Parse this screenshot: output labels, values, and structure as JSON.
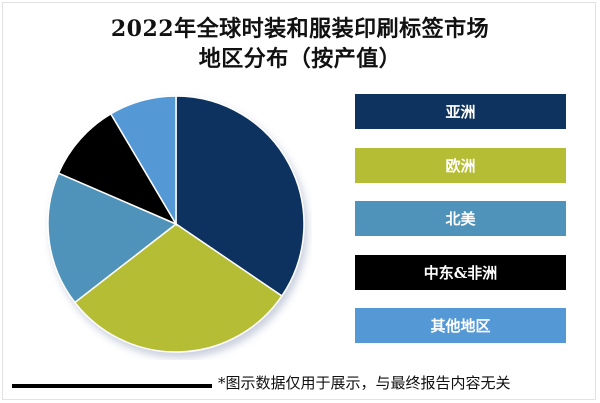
{
  "title": {
    "line1": "2022年全球时装和服装印刷标签市场",
    "line2": "地区分布（按产值）"
  },
  "footnote": "*图示数据仅用于展示，与最终报告内容无关",
  "chart_data": {
    "type": "pie",
    "title": "2022年全球时装和服装印刷标签市场地区分布（按产值）",
    "categories": [
      "亚洲",
      "欧洲",
      "北美",
      "中东&非洲",
      "其他地区"
    ],
    "values": [
      34.5,
      30.0,
      17.0,
      10.0,
      8.5
    ],
    "unit": "%",
    "start_angle_deg": 0,
    "direction": "clockwise",
    "colors": [
      "#0e335e",
      "#b5bd35",
      "#4f93bb",
      "#000000",
      "#5598d6"
    ],
    "legend_position": "right",
    "data_labels": false
  },
  "legend": {
    "items": [
      {
        "label": "亚洲",
        "color": "#0e335e"
      },
      {
        "label": "欧洲",
        "color": "#b5bd35"
      },
      {
        "label": "北美",
        "color": "#4f93bb"
      },
      {
        "label": "中东&非洲",
        "color": "#000000"
      },
      {
        "label": "其他地区",
        "color": "#5598d6"
      }
    ]
  }
}
